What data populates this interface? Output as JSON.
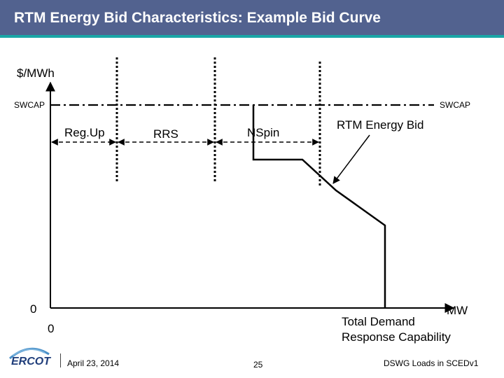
{
  "header": {
    "title": "RTM Energy Bid Characteristics: Example Bid Curve"
  },
  "diagram": {
    "y_axis_label": "$/MWh",
    "swcap_left": "SWCAP",
    "swcap_right": "SWCAP",
    "y_zero": "0",
    "x_zero": "0",
    "x_axis_label": "MW",
    "regions": [
      "Reg.Up",
      "RRS",
      "NSpin"
    ],
    "bid_label": "RTM Energy Bid",
    "total_capability": [
      "Total Demand",
      "Response Capability"
    ]
  },
  "footer": {
    "logo_text": "ERCOT",
    "date": "April 23, 2014",
    "page_number": "25",
    "source": "DSWG Loads in SCEDv1"
  },
  "colors": {
    "title_bar": "#52628f",
    "title_stripe": "#1aa6a6",
    "logo_blue": "#1f3d7a",
    "logo_arc": "#4a90c8"
  }
}
